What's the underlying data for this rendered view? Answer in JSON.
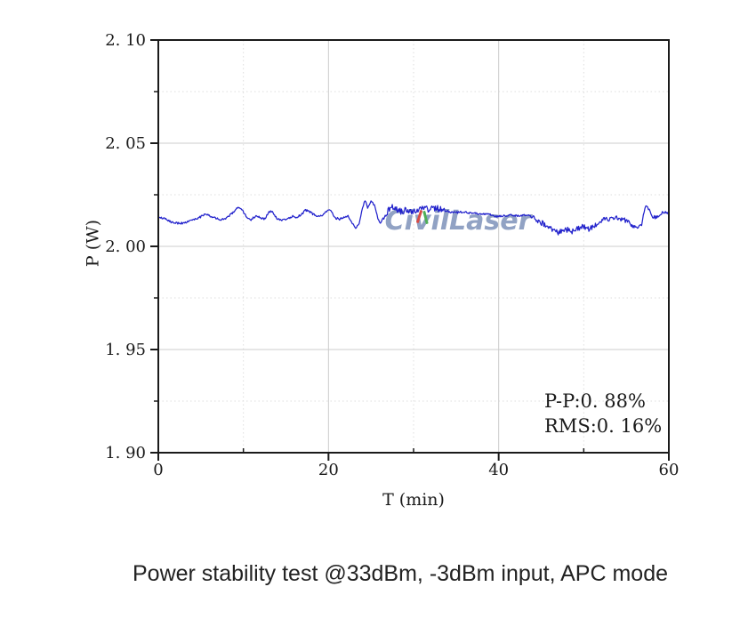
{
  "watermark": {
    "text": "CivilLaser",
    "color": "#7e92ba"
  },
  "caption": "Power stability test @33dBm, -3dBm input, APC mode",
  "annotation": {
    "line1": "P-P:0. 88%",
    "line2": "RMS:0. 16%"
  },
  "chart_data": {
    "type": "line",
    "title": "",
    "xlabel": "T (min)",
    "ylabel": "P (W)",
    "xlim": [
      0,
      60
    ],
    "ylim": [
      1.9,
      2.1
    ],
    "x_major_ticks": [
      0,
      20,
      40,
      60
    ],
    "x_major_tick_labels": [
      "0",
      "20",
      "40",
      "60"
    ],
    "x_minor_ticks": [
      10,
      30,
      50
    ],
    "y_major_ticks": [
      1.9,
      1.95,
      2.0,
      2.05,
      2.1
    ],
    "y_major_tick_labels": [
      "1. 90",
      "1. 95",
      "2. 00",
      "2. 05",
      "2. 10"
    ],
    "y_minor_ticks": [
      1.925,
      1.975,
      2.025,
      2.075
    ],
    "grid": {
      "major_style": "solid",
      "minor_style": "dotted",
      "major_color": "#cccccc",
      "minor_color": "#dedede"
    },
    "line_color": "#2222cc",
    "frame_color": "#1a1a1a",
    "stats": {
      "pp_percent": 0.88,
      "rms_percent": 0.16
    },
    "series": [
      {
        "name": "P",
        "points": [
          [
            0.0,
            2.0145
          ],
          [
            0.8,
            2.0132
          ],
          [
            1.5,
            2.0118
          ],
          [
            2.2,
            2.0112
          ],
          [
            3.0,
            2.0113
          ],
          [
            3.8,
            2.0122
          ],
          [
            4.6,
            2.0135
          ],
          [
            5.4,
            2.0152
          ],
          [
            6.0,
            2.015
          ],
          [
            6.6,
            2.0138
          ],
          [
            7.3,
            2.0128
          ],
          [
            8.0,
            2.0138
          ],
          [
            8.7,
            2.016
          ],
          [
            9.3,
            2.0188
          ],
          [
            9.8,
            2.018
          ],
          [
            10.4,
            2.014
          ],
          [
            10.9,
            2.013
          ],
          [
            11.4,
            2.0145
          ],
          [
            12.0,
            2.014
          ],
          [
            12.5,
            2.0132
          ],
          [
            13.0,
            2.0165
          ],
          [
            13.4,
            2.017
          ],
          [
            14.0,
            2.0132
          ],
          [
            14.6,
            2.0126
          ],
          [
            15.2,
            2.0135
          ],
          [
            15.8,
            2.0146
          ],
          [
            16.3,
            2.014
          ],
          [
            16.9,
            2.0158
          ],
          [
            17.3,
            2.0175
          ],
          [
            17.8,
            2.0168
          ],
          [
            18.4,
            2.015
          ],
          [
            19.0,
            2.0145
          ],
          [
            19.6,
            2.0162
          ],
          [
            20.2,
            2.0178
          ],
          [
            20.8,
            2.0138
          ],
          [
            21.3,
            2.0132
          ],
          [
            21.8,
            2.0142
          ],
          [
            22.3,
            2.0148
          ],
          [
            22.8,
            2.0112
          ],
          [
            23.2,
            2.009
          ],
          [
            23.6,
            2.0108
          ],
          [
            24.0,
            2.019
          ],
          [
            24.3,
            2.0225
          ],
          [
            24.6,
            2.0182
          ],
          [
            25.0,
            2.0222
          ],
          [
            25.4,
            2.02
          ],
          [
            25.8,
            2.0135
          ],
          [
            26.1,
            2.0115
          ],
          [
            26.5,
            2.014
          ],
          [
            27.0,
            2.0172
          ],
          [
            27.5,
            2.019
          ],
          [
            28.0,
            2.0178
          ],
          [
            28.5,
            2.0168
          ],
          [
            29.0,
            2.0178
          ],
          [
            29.5,
            2.0162
          ],
          [
            30.0,
            2.017
          ],
          [
            30.6,
            2.0175
          ],
          [
            31.2,
            2.0182
          ],
          [
            31.8,
            2.018
          ],
          [
            32.4,
            2.0186
          ],
          [
            33.0,
            2.0183
          ],
          [
            33.6,
            2.0172
          ],
          [
            34.2,
            2.0168
          ],
          [
            35.0,
            2.0163
          ],
          [
            35.8,
            2.0168
          ],
          [
            36.6,
            2.0162
          ],
          [
            37.4,
            2.016
          ],
          [
            38.2,
            2.0158
          ],
          [
            39.0,
            2.0153
          ],
          [
            39.8,
            2.0143
          ],
          [
            40.6,
            2.0148
          ],
          [
            41.4,
            2.0152
          ],
          [
            42.2,
            2.0148
          ],
          [
            43.0,
            2.0153
          ],
          [
            43.8,
            2.0145
          ],
          [
            44.6,
            2.0125
          ],
          [
            45.4,
            2.0105
          ],
          [
            46.2,
            2.0082
          ],
          [
            47.0,
            2.0066
          ],
          [
            47.6,
            2.0075
          ],
          [
            48.2,
            2.008
          ],
          [
            48.8,
            2.007
          ],
          [
            49.4,
            2.009
          ],
          [
            50.0,
            2.0095
          ],
          [
            50.6,
            2.0082
          ],
          [
            51.2,
            2.0095
          ],
          [
            51.8,
            2.0115
          ],
          [
            52.4,
            2.0135
          ],
          [
            53.0,
            2.0132
          ],
          [
            53.6,
            2.014
          ],
          [
            54.2,
            2.0136
          ],
          [
            54.8,
            2.0128
          ],
          [
            55.4,
            2.0112
          ],
          [
            56.0,
            2.0092
          ],
          [
            56.4,
            2.0088
          ],
          [
            56.8,
            2.01
          ],
          [
            57.1,
            2.0165
          ],
          [
            57.3,
            2.0198
          ],
          [
            57.6,
            2.0185
          ],
          [
            58.0,
            2.0148
          ],
          [
            58.4,
            2.0138
          ],
          [
            58.9,
            2.0152
          ],
          [
            59.4,
            2.0168
          ],
          [
            59.8,
            2.0162
          ],
          [
            60.0,
            2.0168
          ]
        ]
      }
    ],
    "noise": {
      "seed": 20250101,
      "default_amp": 0.0005,
      "bands": [
        [
          26.5,
          34.0,
          0.0016
        ],
        [
          44.0,
          51.5,
          0.0014
        ],
        [
          52.0,
          57.0,
          0.0011
        ],
        [
          57.6,
          60.0,
          0.0009
        ]
      ]
    }
  }
}
